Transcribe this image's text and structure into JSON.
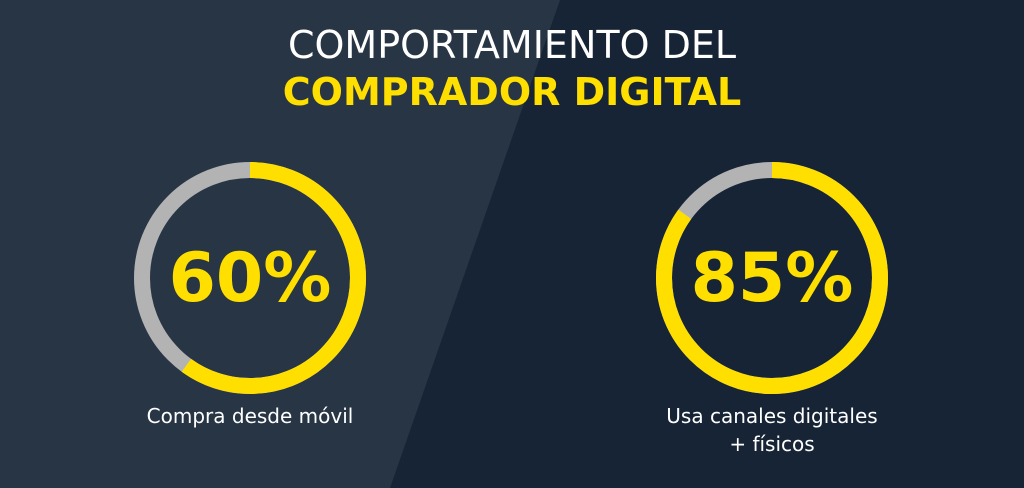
{
  "title": {
    "line1": "COMPORTAMIENTO DEL",
    "line2": "COMPRADOR DIGITAL"
  },
  "colors": {
    "background": "#172436",
    "panel": "#283545",
    "accent": "#ffdf00",
    "track": "#b3b3b3",
    "text": "#ffffff"
  },
  "chart_data": [
    {
      "type": "pie",
      "values": [
        60,
        40
      ],
      "value_label": "60%",
      "caption": [
        "Compra desde móvil"
      ]
    },
    {
      "type": "pie",
      "values": [
        85,
        15
      ],
      "value_label": "85%",
      "caption": [
        "Usa canales digitales",
        "+ físicos"
      ]
    }
  ]
}
